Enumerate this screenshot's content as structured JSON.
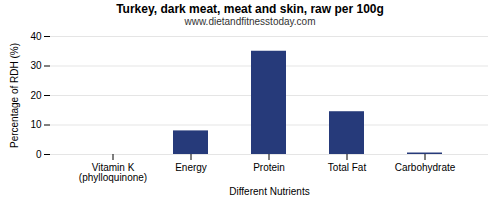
{
  "chart_data": {
    "type": "bar",
    "title": "Turkey, dark meat, meat and skin, raw per 100g",
    "subtitle": "www.dietandfitnesstoday.com",
    "xlabel": "Different Nutrients",
    "ylabel": "Percentage of RDH (%)",
    "categories": [
      "Vitamin K (phylloquinone)",
      "Energy",
      "Protein",
      "Total Fat",
      "Carbohydrate"
    ],
    "values": [
      0,
      8,
      35,
      14.5,
      0.5
    ],
    "color": "#263a7a",
    "ylim": [
      0,
      40
    ],
    "yticks": [
      0,
      10,
      20,
      30,
      40
    ],
    "grid": true
  }
}
